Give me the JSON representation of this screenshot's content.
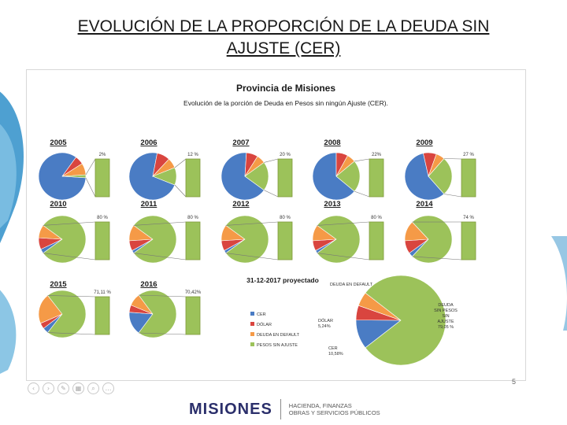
{
  "slide": {
    "title_line1": "EVOLUCIÓN DE LA PROPORCIÓN DE LA DEUDA SIN",
    "title_line2": "AJUSTE (CER)",
    "page_number": "5"
  },
  "footer": {
    "logo": "MISIONES",
    "line1": "HACIENDA, FINANZAS",
    "line2": "OBRAS Y SERVICIOS PÚBLICOS"
  },
  "colors": {
    "cer": "#4a7cc4",
    "dolar": "#d9453f",
    "default": "#f59a47",
    "sin_ajuste": "#9cc25a",
    "outline": "#7f9a3a"
  },
  "chart_data": {
    "type": "pie",
    "title": "Provincia de Misiones",
    "subtitle": "Evolución de la porción de Deuda en Pesos sin ningún Ajuste (CER).",
    "legend": [
      "CER",
      "DÓLAR",
      "DEUDA EN DEFAULT",
      "PESOS SIN AJUSTE"
    ],
    "charts": [
      {
        "label": "2005",
        "bar_label": "2%",
        "slices": [
          84,
          6,
          8,
          2
        ]
      },
      {
        "label": "2006",
        "bar_label": "12 %",
        "slices": [
          72,
          9,
          7,
          12
        ]
      },
      {
        "label": "2007",
        "bar_label": "20 %",
        "slices": [
          66,
          8,
          6,
          20
        ]
      },
      {
        "label": "2008",
        "bar_label": "22%",
        "slices": [
          64,
          8,
          6,
          22
        ]
      },
      {
        "label": "2009",
        "bar_label": "27 %",
        "slices": [
          58,
          9,
          6,
          27
        ]
      },
      {
        "label": "2010",
        "bar_label": "80 %",
        "slices": [
          3,
          8,
          9,
          80
        ]
      },
      {
        "label": "2011",
        "bar_label": "80 %",
        "slices": [
          2,
          7,
          11,
          80
        ]
      },
      {
        "label": "2012",
        "bar_label": "80 %",
        "slices": [
          2,
          7,
          11,
          80
        ]
      },
      {
        "label": "2013",
        "bar_label": "80 %",
        "slices": [
          2,
          7,
          11,
          80
        ]
      },
      {
        "label": "2014",
        "bar_label": "74 %",
        "slices": [
          3,
          9,
          14,
          74
        ]
      },
      {
        "label": "2015",
        "bar_label": "71,11 %",
        "slices": [
          4,
          4,
          20.89,
          71.11
        ]
      },
      {
        "label": "2016",
        "bar_label": "70,42%",
        "slices": [
          16,
          5,
          8.58,
          70.42
        ]
      },
      {
        "label": "31-12-2017 proyectado",
        "slices": [
          10.58,
          5.24,
          5.13,
          79.05
        ],
        "annotations": [
          {
            "text": "DEUDA EN DEFAULT",
            "value": ""
          },
          {
            "text": "DÓLAR",
            "value": "5,24%"
          },
          {
            "text": "CER",
            "value": "10,58%"
          },
          {
            "text": "DEUDA SIN PESOS SIN AJUSTE",
            "value": "79,05 %"
          }
        ]
      }
    ]
  }
}
